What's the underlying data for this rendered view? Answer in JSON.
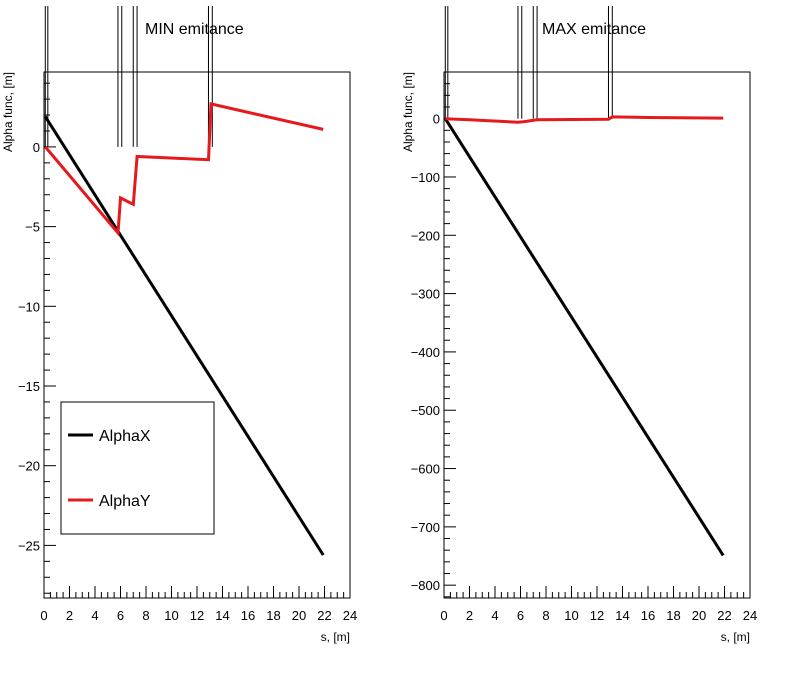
{
  "chart_data": [
    {
      "type": "line",
      "title": "MIN emitance",
      "xlabel": "s, [m]",
      "ylabel": "Alpha func, [m]",
      "xlim": [
        0,
        24
      ],
      "ylim": [
        -28.3,
        4.7
      ],
      "x_ticks": [
        0,
        2,
        4,
        6,
        8,
        10,
        12,
        14,
        16,
        18,
        20,
        22,
        24
      ],
      "y_ticks": [
        0,
        -5,
        -10,
        -15,
        -20,
        -25
      ],
      "y_tick_labels": [
        "0",
        "−5",
        "−10",
        "−15",
        "−20",
        "−25"
      ],
      "element_markers_s": [
        0.1,
        0.3,
        5.8,
        6.1,
        7.0,
        7.3,
        12.9,
        13.2
      ],
      "legend": {
        "position": "bottom-left",
        "entries": [
          {
            "label": "AlphaX",
            "color": "#000000"
          },
          {
            "label": "AlphaY",
            "color": "#e41a1c"
          }
        ]
      },
      "series": [
        {
          "name": "AlphaX",
          "color": "#000000",
          "x": [
            0.1,
            21.9
          ],
          "y": [
            1.9,
            -25.6
          ]
        },
        {
          "name": "AlphaY",
          "color": "#e41a1c",
          "x": [
            0.1,
            5.8,
            6.0,
            7.0,
            7.3,
            12.9,
            13.1,
            21.9
          ],
          "y": [
            0.0,
            -5.4,
            -3.2,
            -3.6,
            -0.6,
            -0.8,
            2.7,
            1.1
          ]
        }
      ]
    },
    {
      "type": "line",
      "title": "MAX emitance",
      "xlabel": "s, [m]",
      "ylabel": "Alpha func, [m]",
      "xlim": [
        0,
        24
      ],
      "ylim": [
        -822,
        80
      ],
      "x_ticks": [
        0,
        2,
        4,
        6,
        8,
        10,
        12,
        14,
        16,
        18,
        20,
        22,
        24
      ],
      "y_ticks": [
        0,
        -100,
        -200,
        -300,
        -400,
        -500,
        -600,
        -700,
        -800
      ],
      "y_tick_labels": [
        "0",
        "−100",
        "−200",
        "−300",
        "−400",
        "−500",
        "−600",
        "−700",
        "−800"
      ],
      "element_markers_s": [
        0.1,
        0.3,
        5.8,
        6.1,
        7.0,
        7.3,
        12.9,
        13.2
      ],
      "series": [
        {
          "name": "AlphaX",
          "color": "#000000",
          "x": [
            0.1,
            21.9
          ],
          "y": [
            0,
            -749
          ]
        },
        {
          "name": "AlphaY",
          "color": "#e41a1c",
          "x": [
            0.1,
            2.0,
            5.8,
            6.3,
            7.3,
            12.9,
            13.2,
            16.0,
            21.9
          ],
          "y": [
            0,
            -2,
            -6,
            -5,
            -2,
            -1,
            3,
            2,
            1
          ]
        }
      ]
    }
  ]
}
